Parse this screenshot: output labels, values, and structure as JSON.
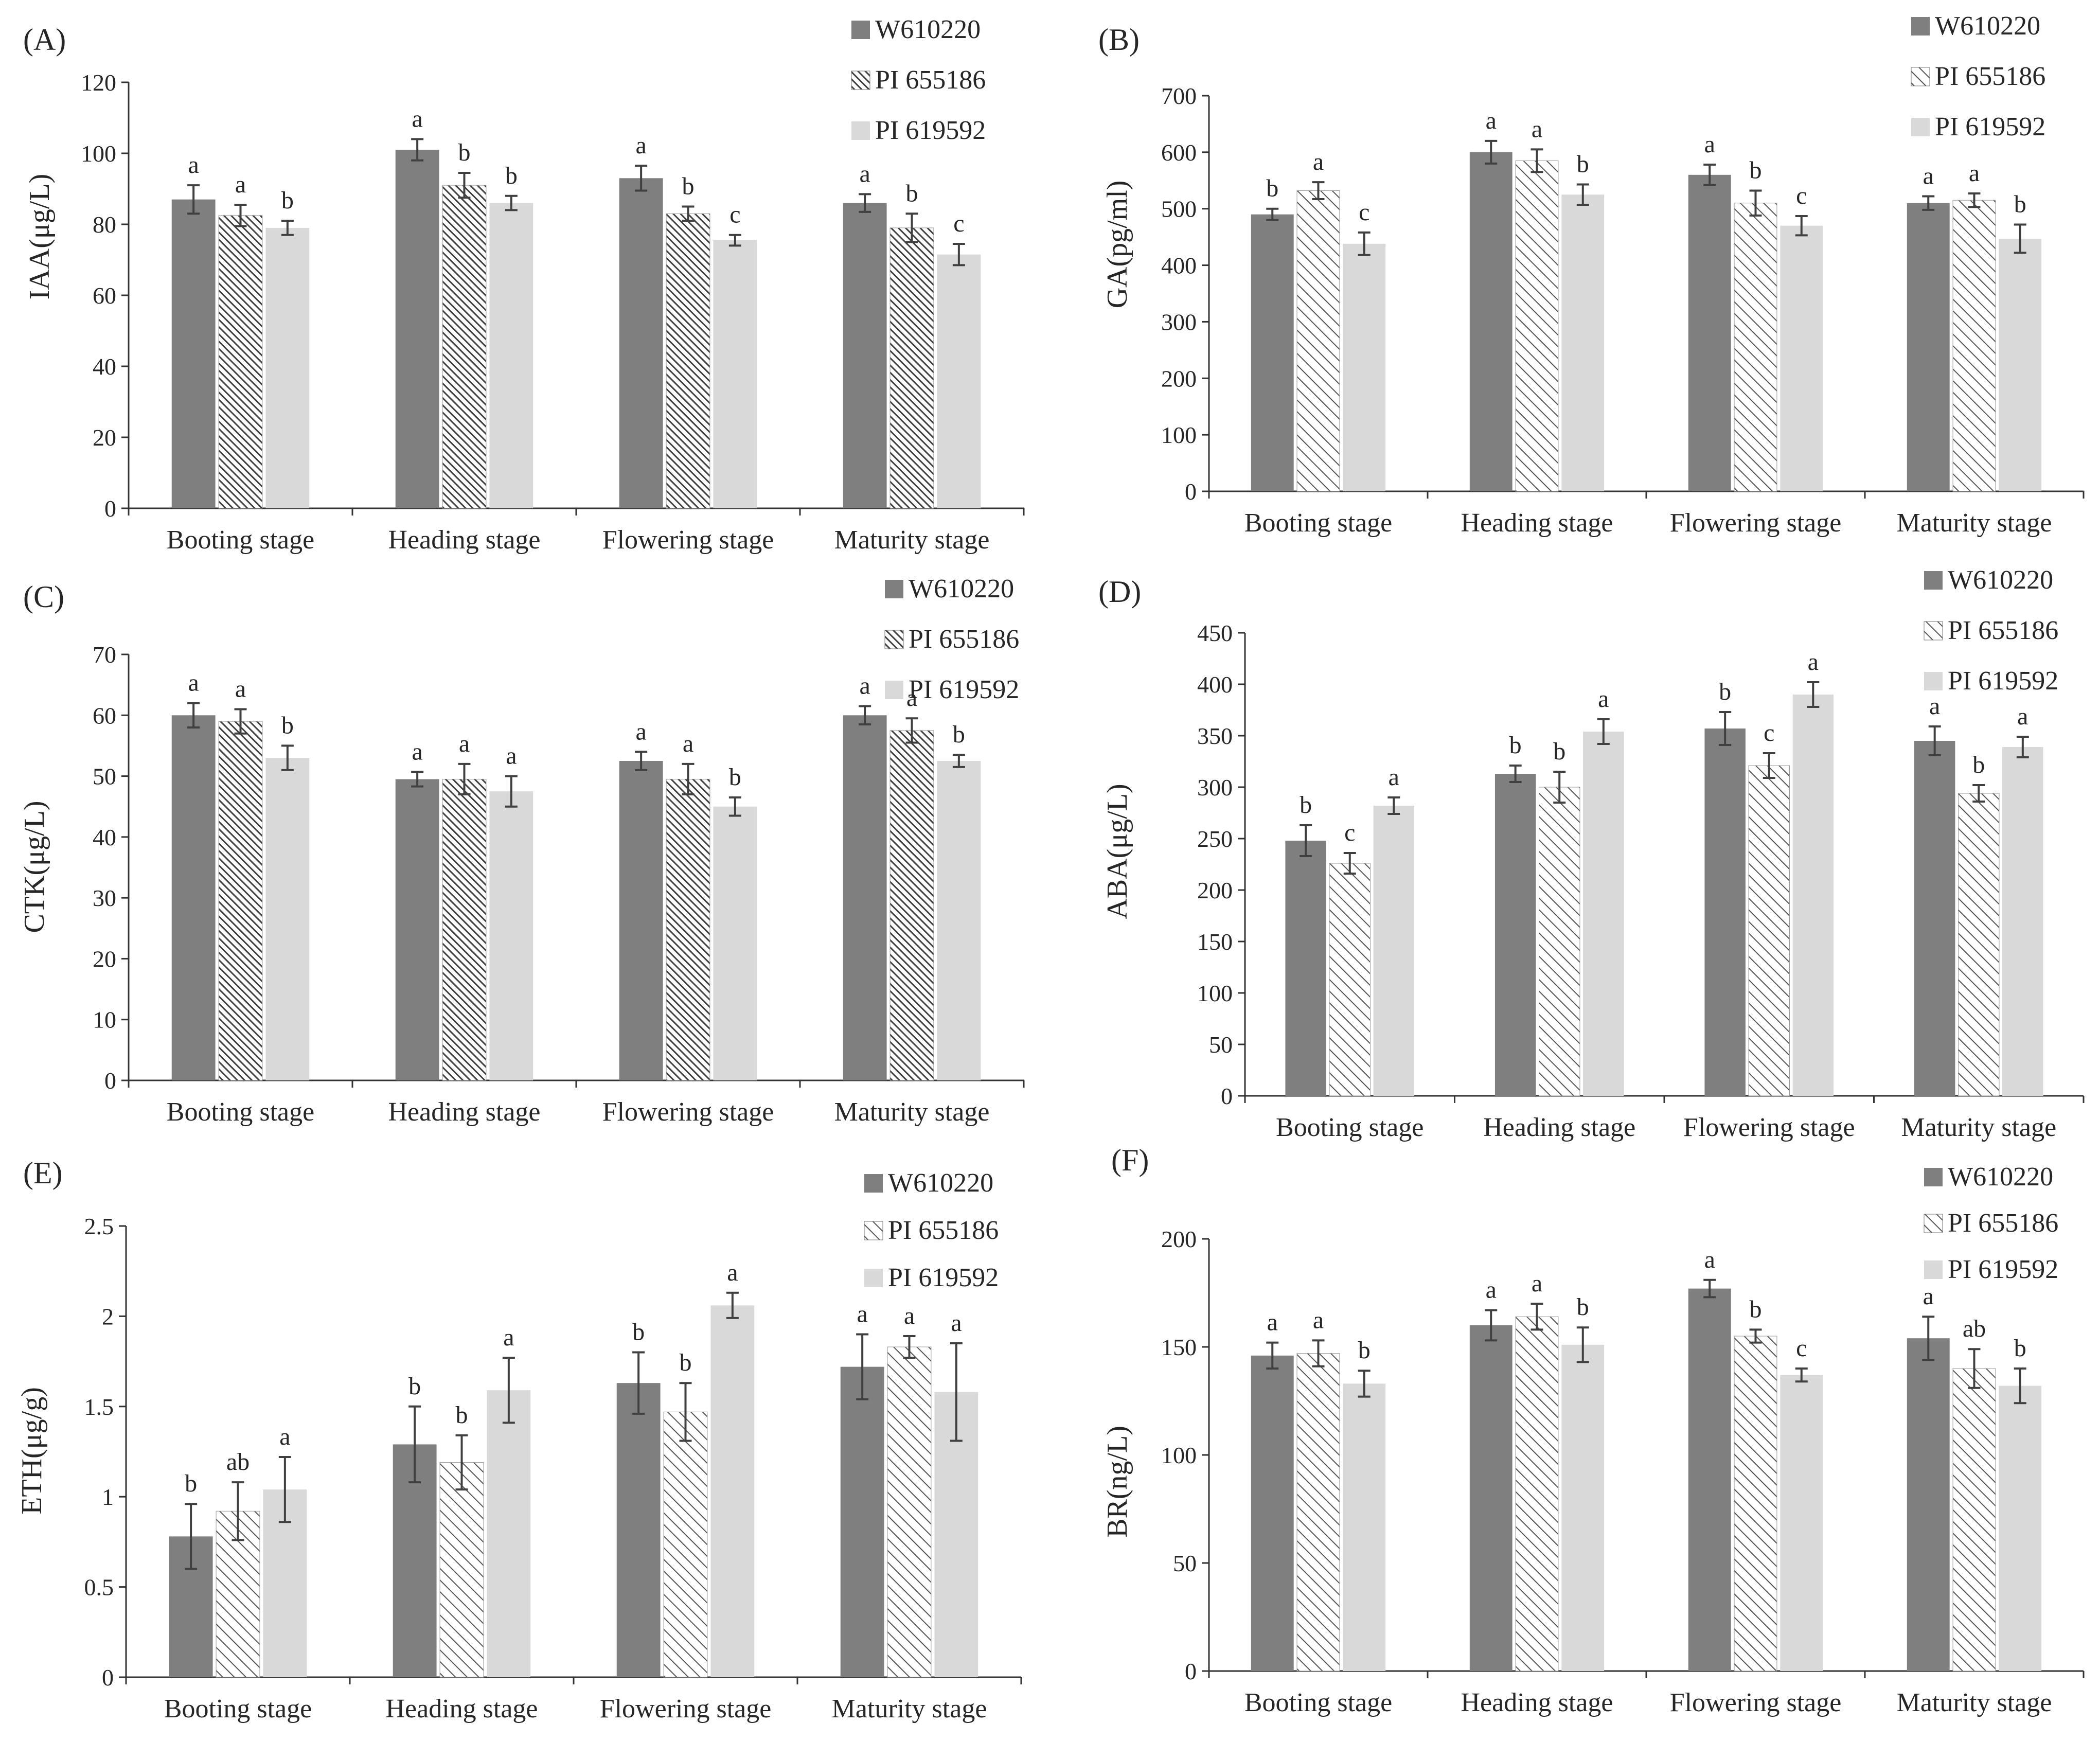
{
  "figure": {
    "category_axis_title": ""
  },
  "colors": {
    "W610220": "#7f7f7f",
    "PI 655186": "#ffffff",
    "PI 619592": "#d9d9d9",
    "hatch": "#404040",
    "axis": "#333333",
    "text": "#262626"
  },
  "chart_data": [
    {
      "panel_label": "(A)",
      "type": "bar",
      "ylabel": "IAA(μg/L)",
      "xlabel": "",
      "ylim": [
        0,
        120
      ],
      "yticks": [
        0,
        20,
        40,
        60,
        80,
        100,
        120
      ],
      "legend_position": "top-right",
      "categories": [
        "Booting stage",
        "Heading stage",
        "Flowering stage",
        "Maturity stage"
      ],
      "series": [
        {
          "name": "W610220",
          "pattern": "solid",
          "values": [
            87,
            101,
            93,
            86
          ],
          "errors": [
            4,
            3,
            3.5,
            2.5
          ],
          "letters": [
            "a",
            "a",
            "a",
            "a"
          ]
        },
        {
          "name": "PI 655186",
          "pattern": "dense-hatch",
          "values": [
            82.5,
            91,
            83,
            79
          ],
          "errors": [
            3,
            3.5,
            2,
            4
          ],
          "letters": [
            "a",
            "b",
            "b",
            "b"
          ]
        },
        {
          "name": "PI 619592",
          "pattern": "solid",
          "values": [
            79,
            86,
            75.5,
            71.5
          ],
          "errors": [
            2,
            2,
            1.5,
            3
          ],
          "letters": [
            "b",
            "b",
            "c",
            "c"
          ]
        }
      ]
    },
    {
      "panel_label": "(B)",
      "type": "bar",
      "ylabel": "GA(pg/ml)",
      "xlabel": "",
      "ylim": [
        0,
        700
      ],
      "yticks": [
        0,
        100,
        200,
        300,
        400,
        500,
        600,
        700
      ],
      "legend_position": "top-right",
      "categories": [
        "Booting stage",
        "Heading stage",
        "Flowering stage",
        "Maturity stage"
      ],
      "series": [
        {
          "name": "W610220",
          "pattern": "solid",
          "values": [
            490,
            600,
            560,
            510
          ],
          "errors": [
            10,
            20,
            18,
            12
          ],
          "letters": [
            "b",
            "a",
            "a",
            "a"
          ]
        },
        {
          "name": "PI 655186",
          "pattern": "light-hatch",
          "values": [
            532,
            585,
            510,
            515
          ],
          "errors": [
            15,
            20,
            22,
            12
          ],
          "letters": [
            "a",
            "a",
            "b",
            "a"
          ]
        },
        {
          "name": "PI 619592",
          "pattern": "solid",
          "values": [
            438,
            525,
            470,
            447
          ],
          "errors": [
            20,
            18,
            17,
            25
          ],
          "letters": [
            "c",
            "b",
            "c",
            "b"
          ]
        }
      ]
    },
    {
      "panel_label": "(C)",
      "type": "bar",
      "ylabel": "CTK(μg/L)",
      "xlabel": "",
      "ylim": [
        0,
        70
      ],
      "yticks": [
        0,
        10,
        20,
        30,
        40,
        50,
        60,
        70
      ],
      "legend_position": "top-right",
      "categories": [
        "Booting stage",
        "Heading stage",
        "Flowering stage",
        "Maturity stage"
      ],
      "series": [
        {
          "name": "W610220",
          "pattern": "solid",
          "values": [
            60,
            49.5,
            52.5,
            60
          ],
          "errors": [
            2,
            1.2,
            1.5,
            1.5
          ],
          "letters": [
            "a",
            "a",
            "a",
            "a"
          ]
        },
        {
          "name": "PI 655186",
          "pattern": "dense-hatch",
          "values": [
            59,
            49.5,
            49.5,
            57.5
          ],
          "errors": [
            2,
            2.5,
            2.5,
            2
          ],
          "letters": [
            "a",
            "a",
            "a",
            "a"
          ]
        },
        {
          "name": "PI 619592",
          "pattern": "solid",
          "values": [
            53,
            47.5,
            45,
            52.5
          ],
          "errors": [
            2,
            2.5,
            1.5,
            1
          ],
          "letters": [
            "b",
            "a",
            "b",
            "b"
          ]
        }
      ]
    },
    {
      "panel_label": "(D)",
      "type": "bar",
      "ylabel": "ABA(μg/L)",
      "xlabel": "",
      "ylim": [
        0,
        450
      ],
      "yticks": [
        0,
        50,
        100,
        150,
        200,
        250,
        300,
        350,
        400,
        450
      ],
      "legend_position": "top-right",
      "categories": [
        "Booting stage",
        "Heading stage",
        "Flowering stage",
        "Maturity stage"
      ],
      "series": [
        {
          "name": "W610220",
          "pattern": "solid",
          "values": [
            248,
            313,
            357,
            345
          ],
          "errors": [
            15,
            8,
            16,
            14
          ],
          "letters": [
            "b",
            "b",
            "b",
            "a"
          ]
        },
        {
          "name": "PI 655186",
          "pattern": "light-hatch",
          "values": [
            226,
            300,
            321,
            294
          ],
          "errors": [
            10,
            15,
            12,
            8
          ],
          "letters": [
            "c",
            "b",
            "c",
            "b"
          ]
        },
        {
          "name": "PI 619592",
          "pattern": "solid",
          "values": [
            282,
            354,
            390,
            339
          ],
          "errors": [
            8,
            12,
            12,
            10
          ],
          "letters": [
            "a",
            "a",
            "a",
            "a"
          ]
        }
      ]
    },
    {
      "panel_label": "(E)",
      "type": "bar",
      "ylabel": "ETH(μg/g)",
      "xlabel": "",
      "ylim": [
        0,
        2.5
      ],
      "yticks": [
        0,
        0.5,
        1,
        1.5,
        2,
        2.5
      ],
      "legend_position": "top-right",
      "categories": [
        "Booting stage",
        "Heading stage",
        "Flowering stage",
        "Maturity stage"
      ],
      "series": [
        {
          "name": "W610220",
          "pattern": "solid",
          "values": [
            0.78,
            1.29,
            1.63,
            1.72
          ],
          "errors": [
            0.18,
            0.21,
            0.17,
            0.18
          ],
          "letters": [
            "b",
            "b",
            "b",
            "a"
          ]
        },
        {
          "name": "PI 655186",
          "pattern": "light-hatch",
          "values": [
            0.92,
            1.19,
            1.47,
            1.83
          ],
          "errors": [
            0.16,
            0.15,
            0.16,
            0.06
          ],
          "letters": [
            "ab",
            "b",
            "b",
            "a"
          ]
        },
        {
          "name": "PI 619592",
          "pattern": "solid",
          "values": [
            1.04,
            1.59,
            2.06,
            1.58
          ],
          "errors": [
            0.18,
            0.18,
            0.07,
            0.27
          ],
          "letters": [
            "a",
            "a",
            "a",
            "a"
          ]
        }
      ]
    },
    {
      "panel_label": "(F)",
      "type": "bar",
      "ylabel": "BR(ng/L)",
      "xlabel": "",
      "ylim": [
        0,
        200
      ],
      "yticks": [
        0,
        50,
        100,
        150,
        200
      ],
      "legend_position": "top-right",
      "categories": [
        "Booting stage",
        "Heading stage",
        "Flowering stage",
        "Maturity stage"
      ],
      "series": [
        {
          "name": "W610220",
          "pattern": "solid",
          "values": [
            146,
            160,
            177,
            154
          ],
          "errors": [
            6,
            7,
            4,
            10
          ],
          "letters": [
            "a",
            "a",
            "a",
            "a"
          ]
        },
        {
          "name": "PI 655186",
          "pattern": "light-hatch",
          "values": [
            147,
            164,
            155,
            140
          ],
          "errors": [
            6,
            6,
            3,
            9
          ],
          "letters": [
            "a",
            "a",
            "b",
            "ab"
          ]
        },
        {
          "name": "PI 619592",
          "pattern": "solid",
          "values": [
            133,
            151,
            137,
            132
          ],
          "errors": [
            6,
            8,
            3,
            8
          ],
          "letters": [
            "b",
            "b",
            "c",
            "b"
          ]
        }
      ]
    }
  ]
}
